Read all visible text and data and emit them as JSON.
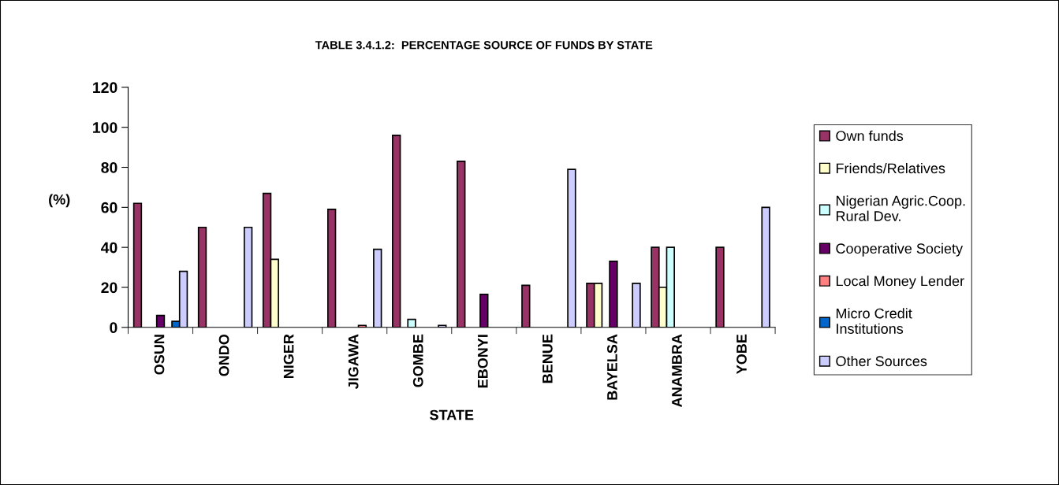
{
  "chart_data": {
    "type": "bar",
    "title": "TABLE 3.4.1.2:  PERCENTAGE SOURCE OF FUNDS BY STATE",
    "xlabel": "STATE",
    "ylabel": "(%)",
    "categories": [
      "OSUN",
      "ONDO",
      "NIGER",
      "JIGAWA",
      "GOMBE",
      "EBONYI",
      "BENUE",
      "BAYELSA",
      "ANAMBRA",
      "YOBE"
    ],
    "series": [
      {
        "name": "Own funds",
        "color": "#993366",
        "values": [
          62,
          50,
          67,
          59,
          96,
          83,
          21,
          22,
          40,
          40
        ]
      },
      {
        "name": "Friends/Relatives",
        "color": "#ffffcc",
        "values": [
          null,
          null,
          34,
          null,
          null,
          null,
          null,
          22,
          20,
          null
        ]
      },
      {
        "name": "Nigerian Agric.Coop. Rural Dev.",
        "color": "#ccffff",
        "values": [
          null,
          null,
          null,
          null,
          4,
          null,
          null,
          null,
          40,
          null
        ]
      },
      {
        "name": "Cooperative Society",
        "color": "#660066",
        "values": [
          6,
          null,
          null,
          null,
          null,
          16.5,
          null,
          33,
          null,
          null
        ]
      },
      {
        "name": "Local Money Lender",
        "color": "#ff8080",
        "values": [
          null,
          null,
          null,
          1,
          null,
          null,
          null,
          null,
          null,
          null
        ]
      },
      {
        "name": "Micro Credit Institutions",
        "color": "#0066cc",
        "values": [
          3,
          null,
          null,
          null,
          null,
          null,
          null,
          null,
          null,
          null
        ]
      },
      {
        "name": "Other Sources",
        "color": "#ccccff",
        "values": [
          28,
          50,
          null,
          39,
          1,
          null,
          79,
          22,
          null,
          60
        ]
      }
    ],
    "ylim": [
      0,
      120
    ],
    "yticks": [
      0,
      20,
      40,
      60,
      80,
      100,
      120
    ],
    "grid": false,
    "legend": "right"
  }
}
